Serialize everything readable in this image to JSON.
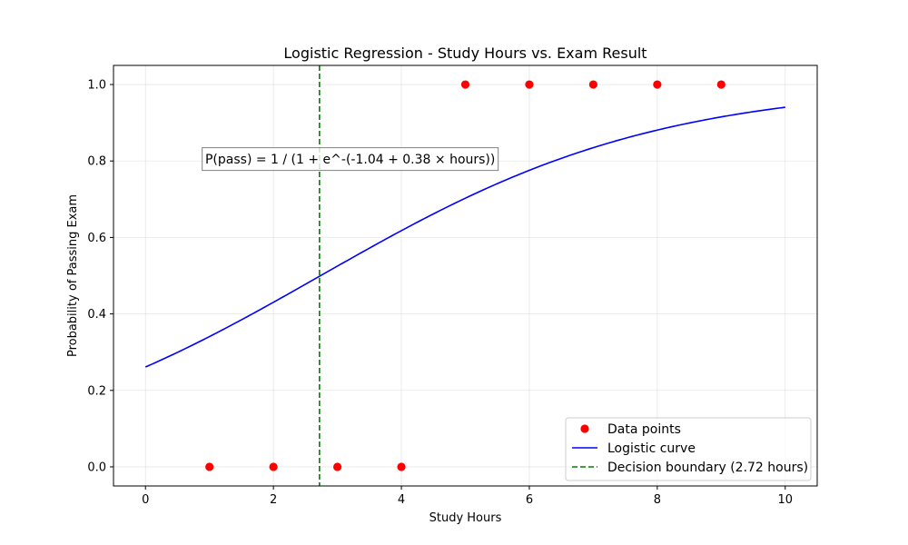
{
  "chart_data": {
    "type": "scatter",
    "title": "Logistic Regression - Study Hours vs. Exam Result",
    "xlabel": "Study Hours",
    "ylabel": "Probability of Passing Exam",
    "xlim": [
      -0.5,
      10.5
    ],
    "ylim": [
      -0.05,
      1.05
    ],
    "xticks": [
      0,
      2,
      4,
      6,
      8,
      10
    ],
    "yticks": [
      0.0,
      0.2,
      0.4,
      0.6,
      0.8,
      1.0
    ],
    "xtick_labels": [
      "0",
      "2",
      "4",
      "6",
      "8",
      "10"
    ],
    "ytick_labels": [
      "0.0",
      "0.2",
      "0.4",
      "0.6",
      "0.8",
      "1.0"
    ],
    "grid": true,
    "legend_position": "lower-right",
    "series": [
      {
        "name": "Data points",
        "type": "scatter",
        "color": "#ff0000",
        "x": [
          1,
          2,
          3,
          4,
          5,
          6,
          7,
          8,
          9
        ],
        "y": [
          0,
          0,
          0,
          0,
          1,
          1,
          1,
          1,
          1
        ]
      },
      {
        "name": "Logistic curve",
        "type": "line",
        "color": "#0000ff",
        "intercept": -1.04,
        "coefficient": 0.38,
        "x_range": [
          0,
          10
        ]
      },
      {
        "name": "Decision boundary (2.72 hours)",
        "type": "vline",
        "color": "#008000",
        "x": 2.72,
        "linestyle": "dashed"
      }
    ],
    "annotation": {
      "text": "P(pass) = 1 / (1 + e^-(-1.04 + 0.38 × hours))",
      "x": 3.2,
      "y": 0.805
    }
  }
}
